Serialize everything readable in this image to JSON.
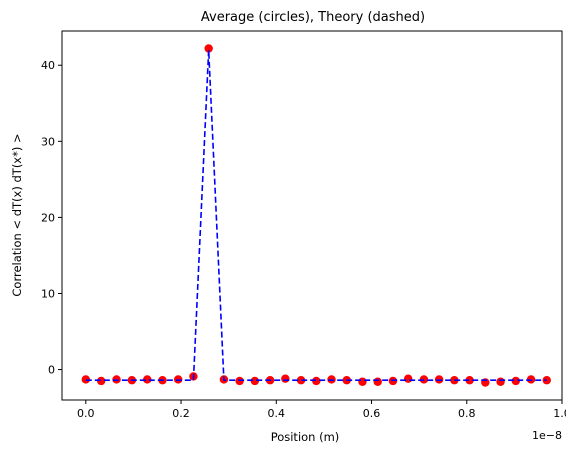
{
  "chart_data": {
    "type": "scatter",
    "title": "Average (circles), Theory (dashed)",
    "xlabel": "Position (m)",
    "ylabel": "Correlation < dT(x) dT(x*) >",
    "x_offset_label": "1e−8",
    "xlim": [
      -0.05,
      1.0
    ],
    "ylim": [
      -4,
      44.5
    ],
    "x_ticks": [
      0.0,
      0.2,
      0.4,
      0.6,
      0.8,
      1.0
    ],
    "x_tick_labels": [
      "0.0",
      "0.2",
      "0.4",
      "0.6",
      "0.8",
      "1.0"
    ],
    "y_ticks": [
      0,
      10,
      20,
      30,
      40
    ],
    "y_tick_labels": [
      "0",
      "10",
      "20",
      "30",
      "40"
    ],
    "x": [
      0.0,
      0.0323,
      0.0645,
      0.0968,
      0.129,
      0.161,
      0.194,
      0.226,
      0.258,
      0.29,
      0.323,
      0.355,
      0.387,
      0.419,
      0.452,
      0.484,
      0.516,
      0.548,
      0.581,
      0.613,
      0.645,
      0.677,
      0.71,
      0.742,
      0.774,
      0.806,
      0.839,
      0.871,
      0.903,
      0.935,
      0.968
    ],
    "series": [
      {
        "name": "Average",
        "style": "circles",
        "color": "#ff0000",
        "values": [
          -1.3,
          -1.5,
          -1.3,
          -1.4,
          -1.3,
          -1.4,
          -1.3,
          -0.9,
          42.2,
          -1.3,
          -1.5,
          -1.5,
          -1.4,
          -1.2,
          -1.4,
          -1.5,
          -1.3,
          -1.4,
          -1.6,
          -1.6,
          -1.5,
          -1.2,
          -1.3,
          -1.3,
          -1.4,
          -1.4,
          -1.7,
          -1.6,
          -1.5,
          -1.3,
          -1.4
        ]
      },
      {
        "name": "Theory",
        "style": "dashed",
        "color": "#0000ff",
        "values": [
          -1.4,
          -1.4,
          -1.4,
          -1.4,
          -1.4,
          -1.4,
          -1.4,
          -1.4,
          42.0,
          -1.4,
          -1.4,
          -1.4,
          -1.4,
          -1.4,
          -1.4,
          -1.4,
          -1.4,
          -1.4,
          -1.4,
          -1.4,
          -1.4,
          -1.4,
          -1.4,
          -1.4,
          -1.4,
          -1.4,
          -1.4,
          -1.4,
          -1.4,
          -1.4,
          -1.4
        ]
      }
    ],
    "grid": false,
    "legend": "none"
  }
}
